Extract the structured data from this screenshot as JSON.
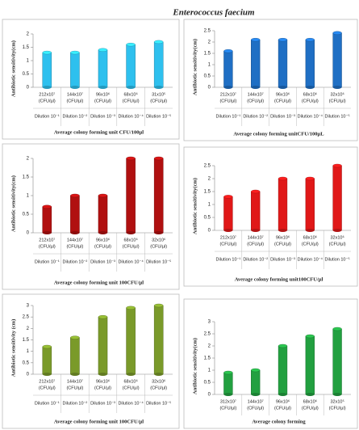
{
  "figure_title": "Enterococcus faecium",
  "chart_data": [
    {
      "type": "bar",
      "color": "#2ec0ee",
      "ylim": [
        0,
        2
      ],
      "yticks": [
        0,
        0.5,
        1,
        1.5,
        2
      ],
      "y_label": "Antibiotic sensitivity(cm)",
      "x_label": "Average colony forming unit CFU/100µl",
      "categories": [
        "212x10⁷",
        "144x10⁷",
        "96x10⁶",
        "68x10⁶",
        "31x10⁵"
      ],
      "units": [
        "(CFU/µl)",
        "(CFU/µl)",
        "(CFU/µl)",
        "(CFU/µl)",
        "(CFU/µl)"
      ],
      "dilutions": [
        "Dilution 10⁻¹",
        "Dilution 10⁻²",
        "Dilution 10⁻³",
        "Dilution 10⁻⁴",
        "Dilution 10⁻⁵"
      ],
      "values": [
        1.3,
        1.3,
        1.4,
        1.6,
        1.7
      ]
    },
    {
      "type": "bar",
      "color": "#1f6fc4",
      "ylim": [
        0,
        2.5
      ],
      "yticks": [
        0,
        0.5,
        1,
        1.5,
        2,
        2.5
      ],
      "y_label": "Antibiotic sensitivity(cm)",
      "x_label": "Average colony forming unitCFU/100µL",
      "categories": [
        "212x10⁷",
        "144x10⁷",
        "96x10⁶",
        "68x10⁶",
        "32x10⁶"
      ],
      "units": [
        "(CFU/µl)",
        "(CFU/µl)",
        "(CFU/µl)",
        "(CFU/µl)",
        "(CFU/µl)"
      ],
      "dilutions": [
        "Dilution 10⁻¹",
        "Dilution 10⁻²",
        "Dilution 10⁻³",
        "Dilution 10⁻⁴",
        "Dilution 10⁻⁵"
      ],
      "values": [
        1.6,
        2.1,
        2.1,
        2.1,
        2.4
      ]
    },
    {
      "type": "bar",
      "color": "#b01010",
      "ylim": [
        0,
        2
      ],
      "yticks": [
        0,
        0.5,
        1,
        1.5,
        2
      ],
      "y_label": "Antibiotic sensitivity(cm)",
      "x_label": "Average colony forming unit 100CFU/µl",
      "categories": [
        "212x10⁷",
        "144x10⁷",
        "96x10⁶",
        "68x10⁶",
        "32x10⁶"
      ],
      "units": [
        "(CFU/µl)",
        "(CFU/µl)",
        "(CFU/µl)",
        "(CFU/µl)",
        "(CFU/µl)"
      ],
      "dilutions": [
        "Dilution 10⁻¹",
        "Dilution 10⁻²",
        "Dilution 10⁻³",
        "Dilution 10⁻⁴",
        "Dilution 10⁻⁵"
      ],
      "values": [
        0.7,
        1.0,
        1.0,
        2.0,
        2.0
      ]
    },
    {
      "type": "bar",
      "color": "#e01818",
      "ylim": [
        0,
        2.5
      ],
      "yticks": [
        0,
        0.5,
        1,
        1.5,
        2,
        2.5
      ],
      "y_label": "Antibiotic sensitivity(cm)",
      "x_label": "Average colony forming unit100CFU/µl",
      "categories": [
        "212x10⁷",
        "144x10⁷",
        "96x10⁶",
        "68x10⁶",
        "32x10⁶"
      ],
      "units": [
        "(CFU/µl)",
        "(CFU/µl)",
        "(CFU/µl)",
        "(CFU/µl)",
        "(CFU/µl)"
      ],
      "dilutions": [
        "Dilution 10⁻¹",
        "Dilution 10⁻²",
        "Dilution 10⁻³",
        "Dilution 10⁻⁴",
        "Dilution 10⁻⁵"
      ],
      "values": [
        1.3,
        1.5,
        2.0,
        2.0,
        2.5
      ]
    },
    {
      "type": "bar",
      "color": "#7a9a2a",
      "ylim": [
        0,
        3
      ],
      "yticks": [
        0,
        0.5,
        1,
        1.5,
        2,
        2.5,
        3
      ],
      "y_label": "Antibiotic sensitivity (cm)",
      "x_label": "Average colony forming unit 100CFU/µl",
      "categories": [
        "212x10⁷",
        "144x10⁷",
        "96x10⁶",
        "68x10⁶",
        "32x10⁶"
      ],
      "units": [
        "(CFU/µl)",
        "(CFU/µl)",
        "(CFU/µl)",
        "(CFU/µl)",
        "(CFU/µl)"
      ],
      "dilutions": [
        "Dilution 10⁻¹",
        "Dilution 10⁻²",
        "Dilution 10⁻³",
        "Dilution 10⁻⁴",
        "Dilution 10⁻⁵"
      ],
      "values": [
        1.2,
        1.6,
        2.5,
        2.9,
        3.0
      ]
    },
    {
      "type": "bar",
      "color": "#22a040",
      "ylim": [
        0,
        3
      ],
      "yticks": [
        0,
        0.5,
        1,
        1.5,
        2,
        2.5,
        3
      ],
      "y_label": "Antibiotic sensitivity(cm)",
      "x_label": "Average colony forming",
      "categories": [
        "312x10⁷",
        "144x10⁷",
        "96x10⁶",
        "68x10⁶",
        "32x10⁵"
      ],
      "units": [
        "(CFU/µl)",
        "(CFU/µl)",
        "(CFU/µl)",
        "(CFU/µl)",
        "(CFU/µl)"
      ],
      "values": [
        0.9,
        1.0,
        2.0,
        2.4,
        2.7
      ]
    }
  ]
}
